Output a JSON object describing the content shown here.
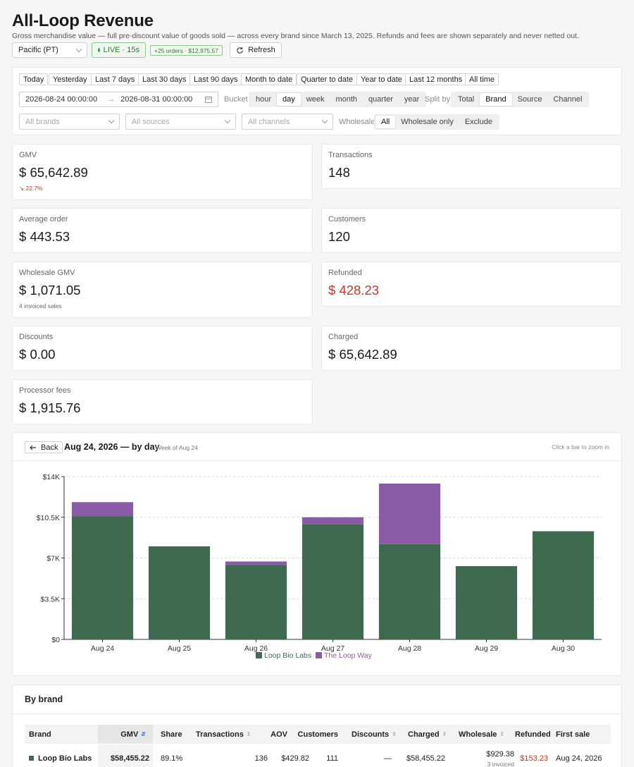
{
  "header": {
    "title": "All-Loop Revenue",
    "subtitle": "Gross merchandise value — full pre-discount value of goods sold — across every brand since March 13, 2025. Refunds and fees are shown separately and never netted out.",
    "timezone": "Pacific (PT)",
    "live_label": "LIVE · 15s",
    "delta_label": "+25 orders · $12,975.57",
    "refresh_label": "Refresh"
  },
  "filters": {
    "quick_ranges": [
      "Today",
      "Yesterday",
      "Last 7 days",
      "Last 30 days",
      "Last 90 days",
      "Month to date",
      "Quarter to date",
      "Year to date",
      "Last 12 months",
      "All time"
    ],
    "date_from": "2026-08-24 00:00:00",
    "date_arrow": "→",
    "date_to": "2026-08-31 00:00:00",
    "bucket_label": "Bucket",
    "buckets": [
      "hour",
      "day",
      "week",
      "month",
      "quarter",
      "year"
    ],
    "bucket_selected": "day",
    "split_label": "Split by",
    "splits": [
      "Total",
      "Brand",
      "Source",
      "Channel"
    ],
    "split_selected": "Brand",
    "brands_placeholder": "All brands",
    "sources_placeholder": "All sources",
    "channels_placeholder": "All channels",
    "wholesale_label": "Wholesale",
    "wholesale_options": [
      "All",
      "Wholesale only",
      "Exclude"
    ],
    "wholesale_selected": "All"
  },
  "metrics": {
    "gmv": {
      "label": "GMV",
      "currency": "$",
      "value": "65,642.89",
      "change": "22.7%"
    },
    "transactions": {
      "label": "Transactions",
      "value": "148"
    },
    "average_order": {
      "label": "Average order",
      "currency": "$",
      "value": "443.53"
    },
    "customers": {
      "label": "Customers",
      "value": "120"
    },
    "wholesale_gmv": {
      "label": "Wholesale GMV",
      "currency": "$",
      "value": "1,071.05",
      "note": "4 invoiced sales"
    },
    "refunded": {
      "label": "Refunded",
      "currency": "$",
      "value": "428.23"
    },
    "discounts": {
      "label": "Discounts",
      "currency": "$",
      "value": "0.00"
    },
    "charged": {
      "label": "Charged",
      "currency": "$",
      "value": "65,642.89"
    },
    "processor_fees": {
      "label": "Processor fees",
      "currency": "$",
      "value": "1,915.76"
    }
  },
  "chart": {
    "back_label": "Back",
    "title": "Aug 24, 2026 — by day",
    "subtitle": "Week of Aug 24",
    "hint": "Click a bar to zoom in"
  },
  "chart_data": {
    "type": "bar",
    "stacked": true,
    "categories": [
      "Aug 24",
      "Aug 25",
      "Aug 26",
      "Aug 27",
      "Aug 28",
      "Aug 29",
      "Aug 30"
    ],
    "series": [
      {
        "name": "Loop Bio Labs",
        "color": "#3e6b4f",
        "values": [
          10600,
          8000,
          6400,
          9900,
          8200,
          6300,
          9300
        ]
      },
      {
        "name": "The Loop Way",
        "color": "#8a5ca6",
        "values": [
          1200,
          0,
          300,
          600,
          5200,
          0,
          0
        ]
      }
    ],
    "y_ticks": [
      "$0",
      "$3.5K",
      "$7K",
      "$10.5K",
      "$14K"
    ],
    "ylim": [
      0,
      14000
    ],
    "grid": true,
    "legend": "bottom"
  },
  "table": {
    "title": "By brand",
    "columns": [
      "Brand",
      "GMV",
      "Share",
      "Transactions",
      "AOV",
      "Customers",
      "Discounts",
      "Charged",
      "Wholesale",
      "Refunded",
      "First sale"
    ],
    "rows": [
      {
        "brand": "Loop Bio Labs",
        "color": "#3e6b4f",
        "gmv": "$58,455.22",
        "share": "89.1%",
        "transactions": "136",
        "aov": "$429.82",
        "customers": "111",
        "discounts": "—",
        "charged": "$58,455.22",
        "wholesale": "$929.38",
        "wholesale_note": "3 invoiced",
        "refunded": "$153.23",
        "first_sale": "Aug 24, 2026"
      }
    ]
  }
}
